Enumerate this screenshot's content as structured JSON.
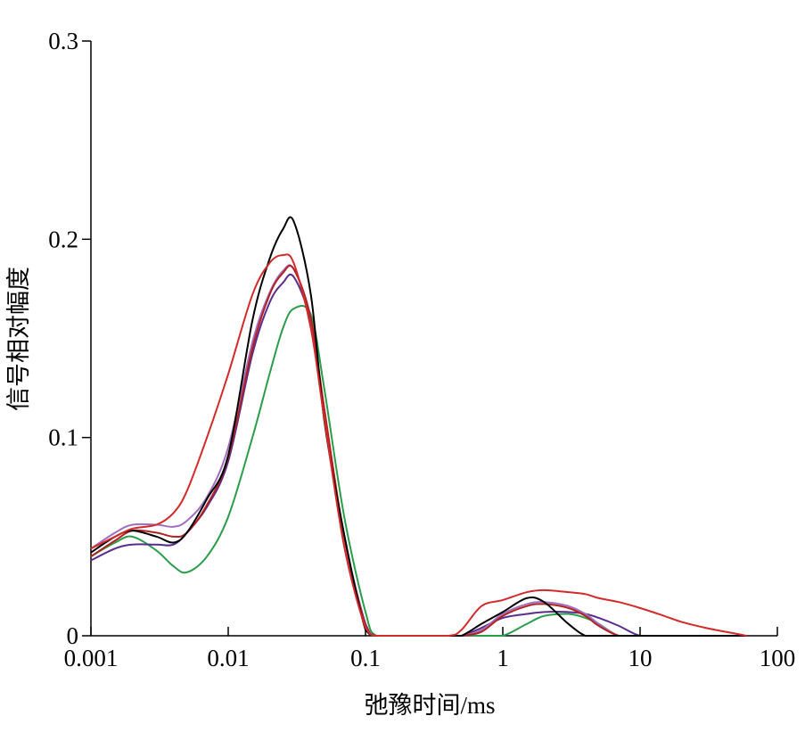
{
  "chart_data": {
    "type": "line",
    "x_label": "弛豫时间/ms",
    "y_label": "信号相对幅度",
    "log_x": true,
    "xlim": [
      0.001,
      100
    ],
    "xticks": [
      0.001,
      0.01,
      0.1,
      1,
      10,
      100
    ],
    "ylim": [
      0,
      0.3
    ],
    "yticks": [
      0,
      0.1,
      0.2,
      0.3
    ],
    "x": [
      0.001,
      0.0015,
      0.002,
      0.003,
      0.004,
      0.005,
      0.007,
      0.01,
      0.015,
      0.02,
      0.025,
      0.03,
      0.04,
      0.05,
      0.07,
      0.1,
      0.12,
      0.2,
      0.4,
      0.5,
      0.7,
      1,
      1.5,
      2,
      3,
      4,
      5,
      7,
      10,
      15,
      20,
      30,
      50,
      60
    ],
    "series": [
      {
        "color": "#2a9d4a",
        "values": [
          0.04,
          0.047,
          0.05,
          0.043,
          0.035,
          0.032,
          0.04,
          0.06,
          0.1,
          0.132,
          0.155,
          0.165,
          0.162,
          0.125,
          0.06,
          0.012,
          0,
          0,
          0,
          0,
          0,
          0,
          0.006,
          0.01,
          0.011,
          0.009,
          0.006,
          0,
          0,
          0,
          0,
          0,
          0,
          0
        ]
      },
      {
        "color": "#5a2d8c",
        "values": [
          0.038,
          0.044,
          0.046,
          0.046,
          0.046,
          0.052,
          0.065,
          0.088,
          0.142,
          0.168,
          0.178,
          0.181,
          0.158,
          0.112,
          0.05,
          0.006,
          0,
          0,
          0,
          0,
          0.004,
          0.009,
          0.011,
          0.012,
          0.012,
          0.011,
          0.009,
          0.005,
          0,
          0,
          0,
          0,
          0,
          0
        ]
      },
      {
        "color": "#a070c0",
        "values": [
          0.044,
          0.052,
          0.056,
          0.056,
          0.055,
          0.058,
          0.07,
          0.095,
          0.148,
          0.173,
          0.184,
          0.185,
          0.16,
          0.112,
          0.05,
          0.005,
          0,
          0,
          0,
          0,
          0.003,
          0.011,
          0.016,
          0.017,
          0.015,
          0.011,
          0.006,
          0,
          0,
          0,
          0,
          0,
          0,
          0
        ]
      },
      {
        "color": "#b22222",
        "values": [
          0.04,
          0.048,
          0.053,
          0.052,
          0.05,
          0.052,
          0.066,
          0.09,
          0.145,
          0.172,
          0.183,
          0.185,
          0.16,
          0.115,
          0.05,
          0.005,
          0,
          0,
          0,
          0,
          0.002,
          0.01,
          0.015,
          0.016,
          0.014,
          0.01,
          0.005,
          0,
          0,
          0,
          0,
          0,
          0,
          0
        ]
      },
      {
        "color": "#000000",
        "values": [
          0.042,
          0.05,
          0.053,
          0.05,
          0.047,
          0.052,
          0.069,
          0.091,
          0.159,
          0.19,
          0.205,
          0.209,
          0.172,
          0.109,
          0.051,
          0.003,
          0,
          0,
          0,
          0,
          0.006,
          0.012,
          0.019,
          0.017,
          0.006,
          0,
          0,
          0,
          0,
          0,
          0,
          0,
          0,
          0
        ]
      },
      {
        "color": "#d42a2a",
        "values": [
          0.044,
          0.05,
          0.054,
          0.056,
          0.062,
          0.073,
          0.1,
          0.132,
          0.172,
          0.188,
          0.192,
          0.188,
          0.155,
          0.11,
          0.045,
          0.004,
          0,
          0,
          0,
          0.003,
          0.015,
          0.018,
          0.022,
          0.023,
          0.022,
          0.021,
          0.019,
          0.017,
          0.014,
          0.01,
          0.007,
          0.004,
          0.001,
          0
        ]
      }
    ]
  }
}
